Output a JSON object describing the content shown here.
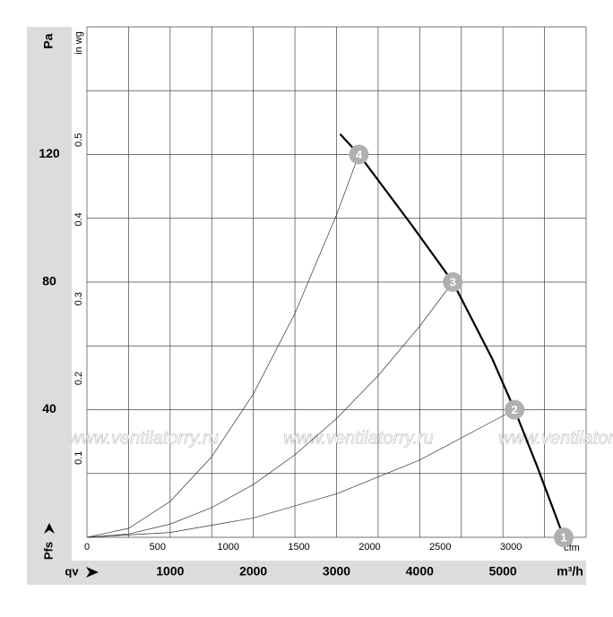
{
  "chart_data": {
    "type": "line",
    "y_label": "Pa",
    "y2_label": "in wg",
    "x_label": "m³/h",
    "x2_label": "cfm",
    "y_symbol": "Pfs",
    "x_symbol": "qv",
    "watermark": "www.ventilatorry.ru",
    "xlim": [
      0,
      6000
    ],
    "xticks": [
      1000,
      2000,
      3000,
      4000,
      5000
    ],
    "x2lim": [
      0,
      3531.5
    ],
    "x2ticks": [
      0,
      500,
      1000,
      1500,
      2000,
      2500,
      3000
    ],
    "ylim": [
      0,
      160
    ],
    "yticks": [
      40,
      80,
      120
    ],
    "y2lim": [
      0,
      0.6423
    ],
    "y2ticks": [
      0.1,
      0.2,
      0.3,
      0.4,
      0.5
    ],
    "xgrid": [
      0,
      500,
      1000,
      1500,
      2000,
      2500,
      3000,
      3500,
      4000,
      4500,
      5000,
      5500,
      6000
    ],
    "ygrid": [
      0,
      20,
      40,
      60,
      80,
      100,
      120,
      140,
      160
    ],
    "series": [
      {
        "color": "#000000",
        "width": 2.2,
        "x": [
          3043,
          3269,
          3903,
          4398,
          4871,
          5140,
          5409,
          5731
        ],
        "values": [
          126.4,
          120,
          97.9,
          80,
          56,
          40,
          22.4,
          0
        ]
      },
      {
        "color": "#333333",
        "width": 0.7,
        "x": [
          0,
          500,
          1000,
          1500,
          2000,
          2500,
          3000,
          3269
        ],
        "values": [
          0,
          2.81,
          11.23,
          25.27,
          44.92,
          70.18,
          101.06,
          120
        ]
      },
      {
        "color": "#333333",
        "width": 0.7,
        "x": [
          0,
          500,
          1000,
          1500,
          2000,
          2500,
          3000,
          3500,
          4000,
          4398
        ],
        "values": [
          0,
          1.03,
          4.14,
          9.3,
          16.54,
          25.85,
          37.22,
          50.66,
          66.17,
          80
        ]
      },
      {
        "color": "#333333",
        "width": 0.7,
        "x": [
          0,
          1000,
          2000,
          3000,
          4000,
          5140
        ],
        "values": [
          0,
          1.51,
          6.06,
          13.63,
          24.22,
          40
        ]
      }
    ],
    "points": [
      {
        "label": "1",
        "x": 5731,
        "y": 0
      },
      {
        "label": "2",
        "x": 5140,
        "y": 40
      },
      {
        "label": "3",
        "x": 4398,
        "y": 80
      },
      {
        "label": "4",
        "x": 3269,
        "y": 120
      }
    ]
  }
}
